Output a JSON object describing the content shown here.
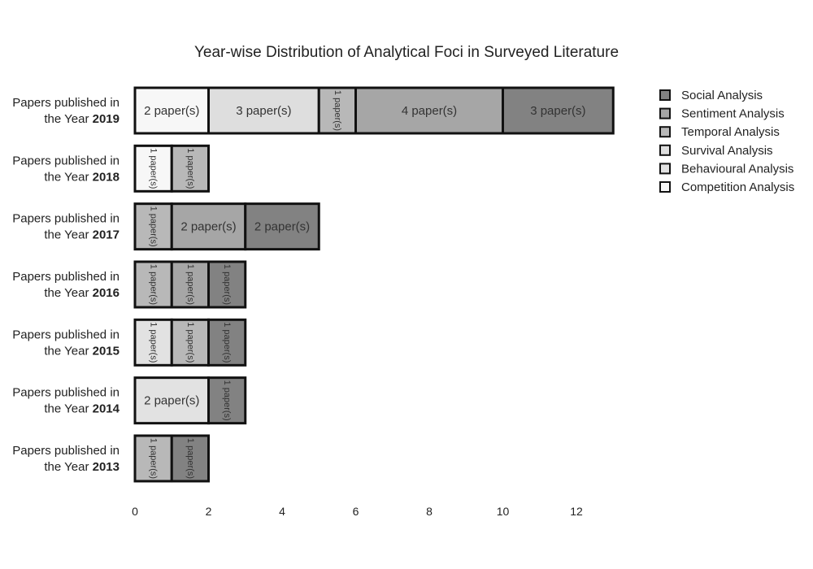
{
  "chart_data": {
    "type": "bar",
    "orientation": "horizontal",
    "stacked": true,
    "title": "Year-wise Distribution of Analytical Foci in Surveyed Literature",
    "xlabel": "",
    "ylabel": "",
    "xlim": [
      0,
      13
    ],
    "xticks": [
      0,
      2,
      4,
      6,
      8,
      10,
      12
    ],
    "grid": false,
    "legend_position": "top-right",
    "category_prefix": "Papers published in",
    "category_year_prefix": "the Year",
    "categories": [
      "2019",
      "2018",
      "2017",
      "2016",
      "2015",
      "2014",
      "2013"
    ],
    "segment_label_suffix": "paper(s)",
    "series": [
      {
        "name": "Competition Analysis",
        "color": "#f7f7f7",
        "values": [
          2,
          1,
          0,
          0,
          0,
          0,
          0
        ]
      },
      {
        "name": "Behavioural Analysis",
        "color": "#e2e2e2",
        "values": [
          0,
          0,
          0,
          0,
          1,
          2,
          0
        ]
      },
      {
        "name": "Survival Analysis",
        "color": "#dedede",
        "values": [
          3,
          0,
          0,
          0,
          0,
          0,
          0
        ]
      },
      {
        "name": "Temporal Analysis",
        "color": "#b8b8b8",
        "values": [
          1,
          1,
          1,
          1,
          1,
          0,
          1
        ]
      },
      {
        "name": "Sentiment Analysis",
        "color": "#a6a6a6",
        "values": [
          4,
          0,
          2,
          1,
          0,
          0,
          0
        ]
      },
      {
        "name": "Social Analysis",
        "color": "#828282",
        "values": [
          3,
          0,
          2,
          1,
          1,
          1,
          1
        ]
      }
    ],
    "legend_order": [
      "Social Analysis",
      "Sentiment Analysis",
      "Temporal Analysis",
      "Survival Analysis",
      "Behavioural Analysis",
      "Competition Analysis"
    ]
  }
}
